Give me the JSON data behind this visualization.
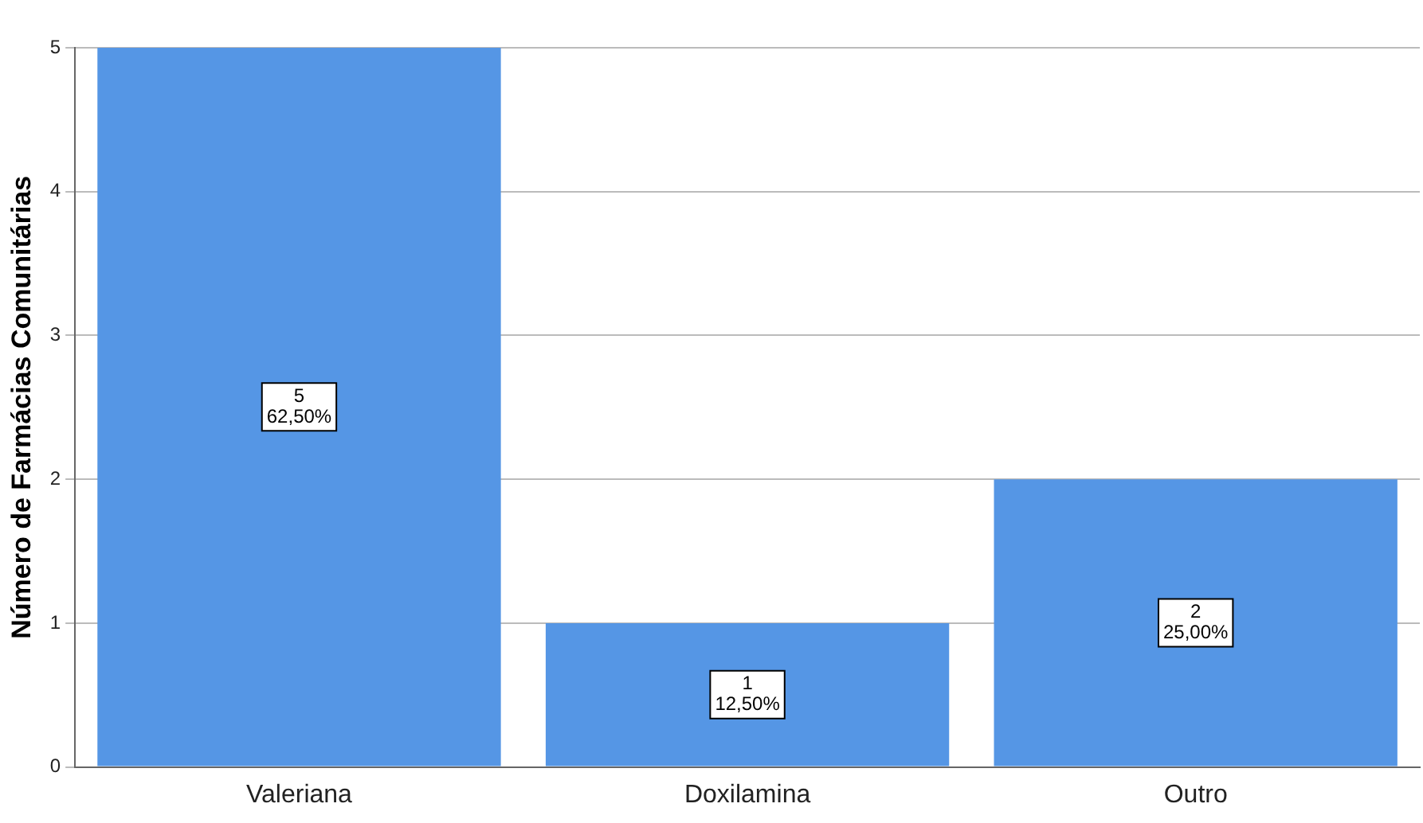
{
  "chart_data": {
    "type": "bar",
    "ylabel": "Número de Farmácias Comunitárias",
    "categories": [
      "Valeriana",
      "Doxilamina",
      "Outro"
    ],
    "values": [
      5,
      1,
      2
    ],
    "color": "#5596e5",
    "value_labels": [
      "5\n62,50%",
      "1\n12,50%",
      "2\n25,00%"
    ],
    "ylim": [
      0,
      5
    ],
    "yticks": [
      0,
      1,
      2,
      3,
      4,
      5
    ],
    "grid": "y"
  }
}
